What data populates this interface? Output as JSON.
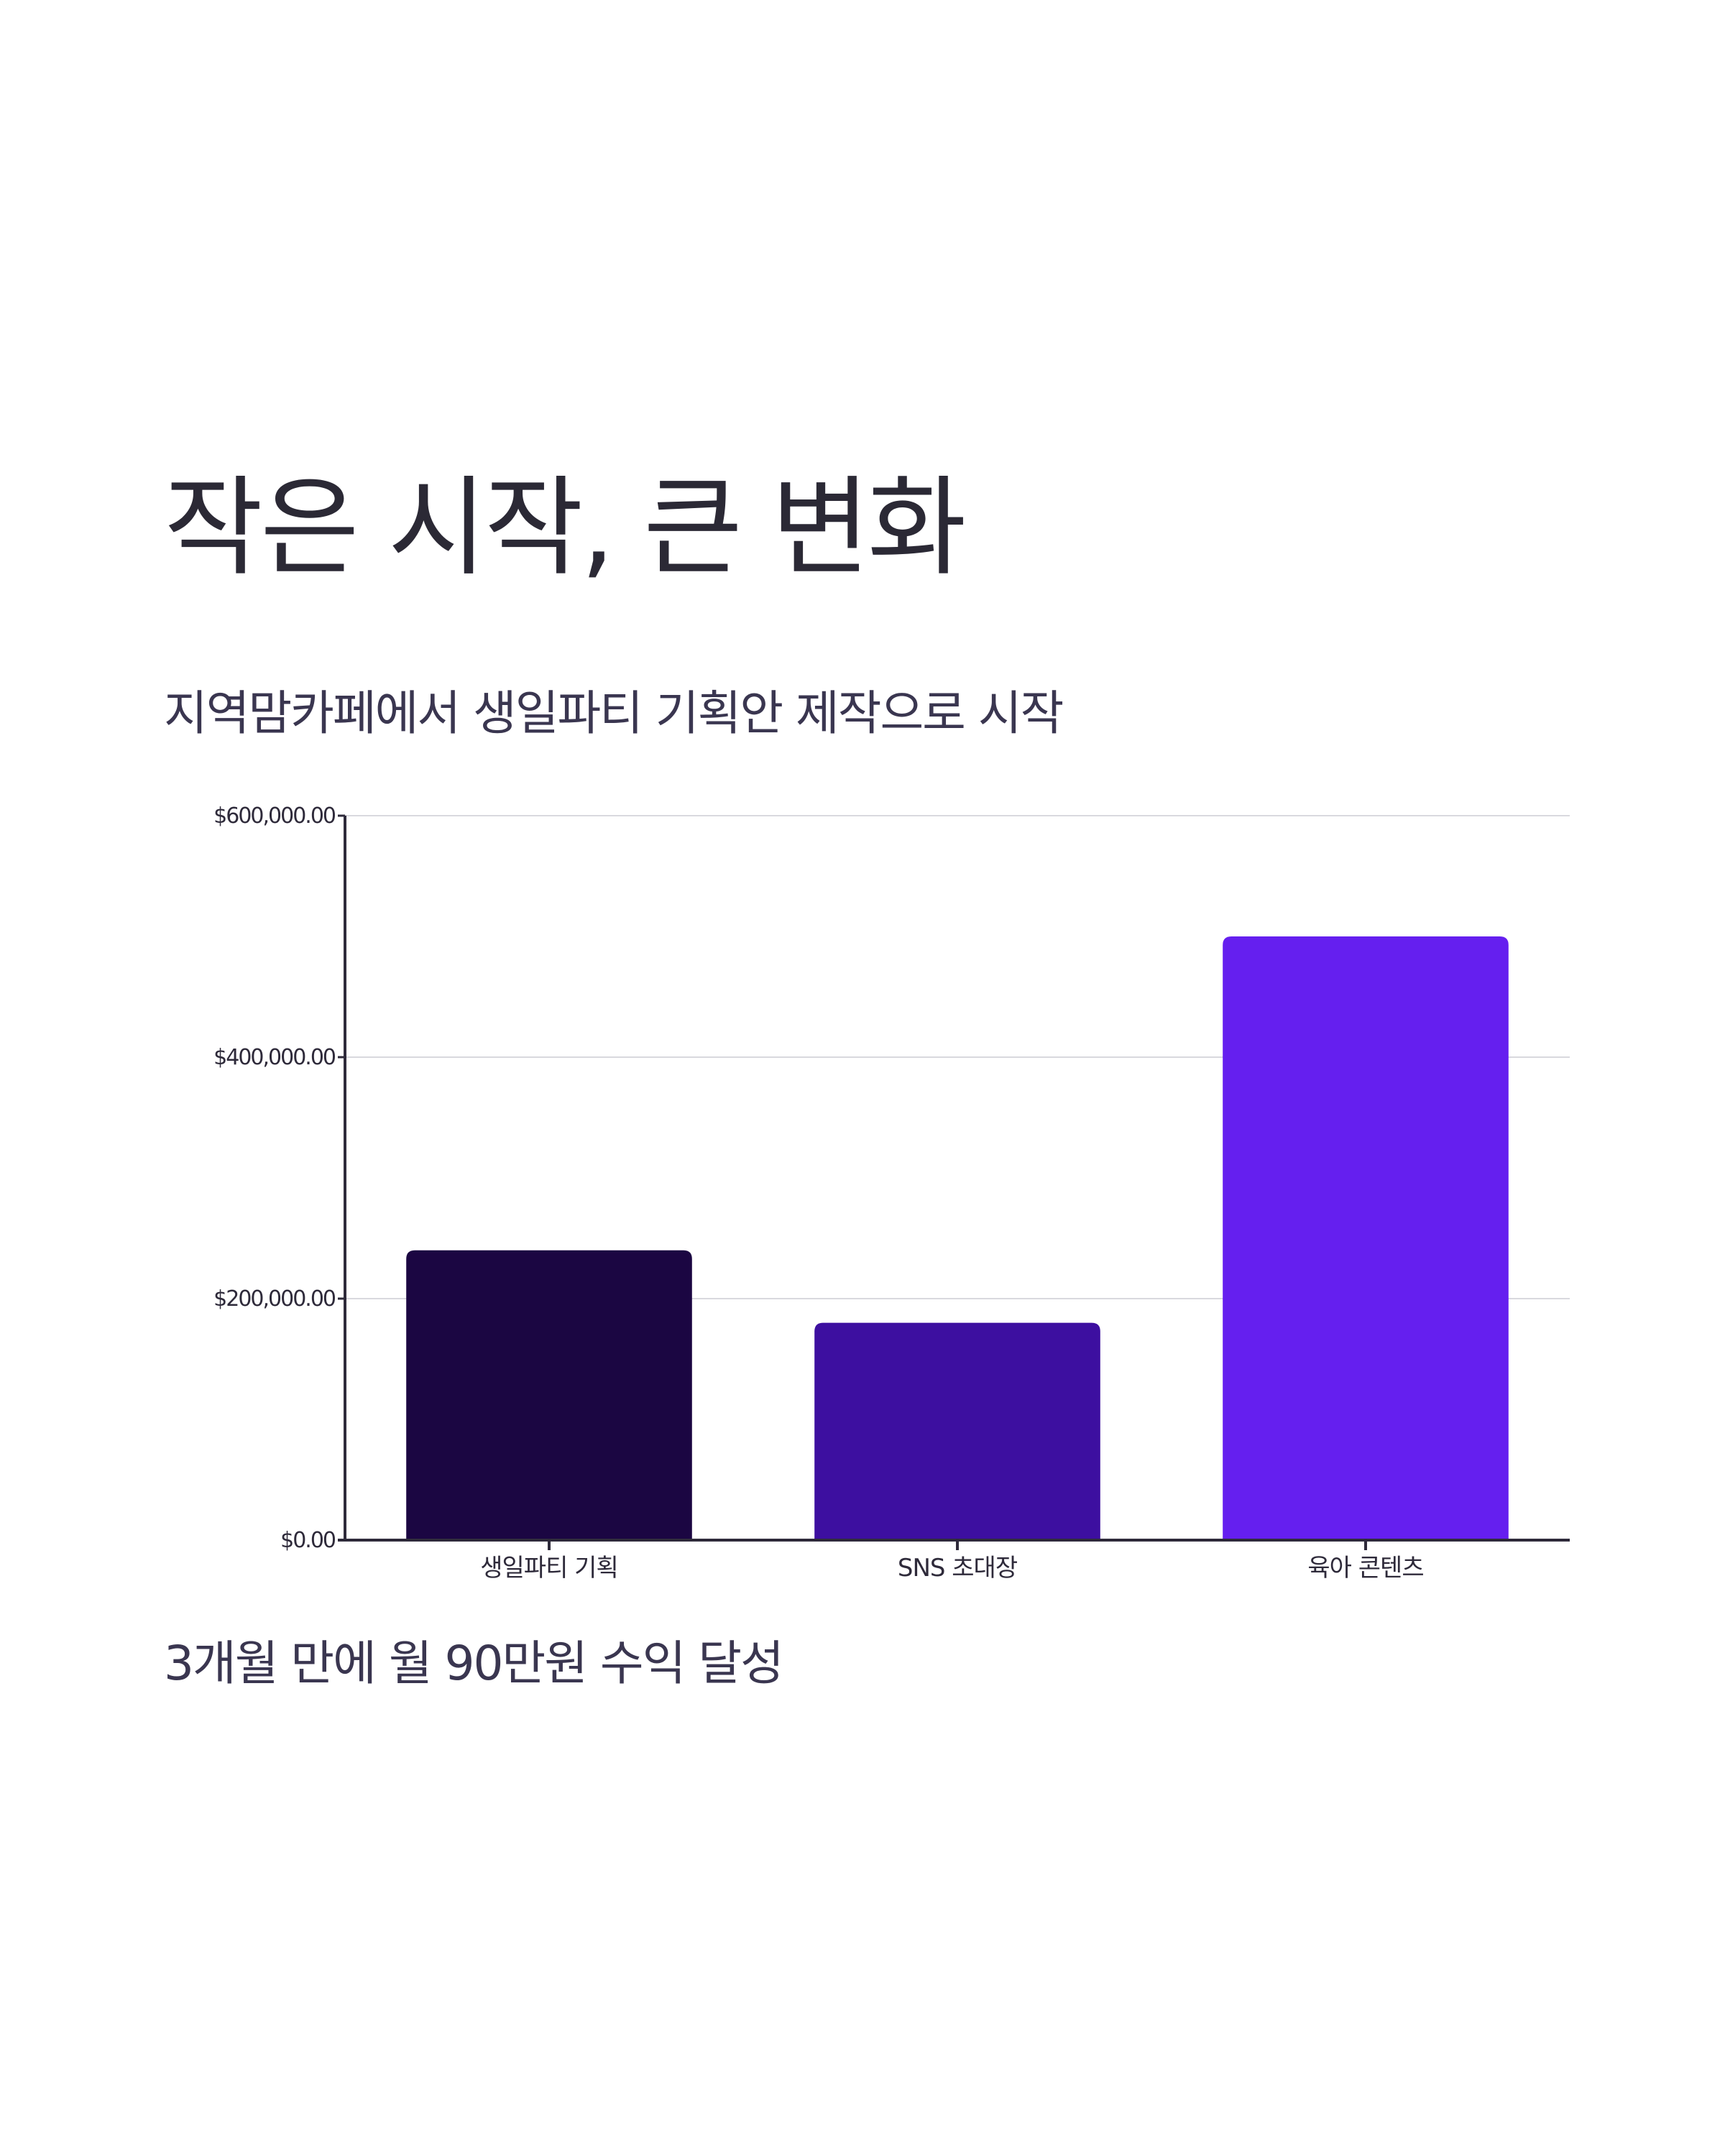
{
  "title": "작은 시작, 큰 변화",
  "subtitle": "지역맘카페에서 생일파티 기획안 제작으로 시작",
  "footnote": "3개월 만에 월 90만원 수익 달성",
  "chart_data": {
    "type": "bar",
    "categories": [
      "생일파티 기획",
      "SNS 초대장",
      "육아 콘텐츠"
    ],
    "values": [
      240000,
      180000,
      500000
    ],
    "colors": [
      "#1b0642",
      "#3d0fa0",
      "#651fef"
    ],
    "ylim": [
      0,
      600000
    ],
    "yticks": [
      0,
      200000,
      400000,
      600000
    ],
    "ytick_labels": [
      "$0.00",
      "$200,000.00",
      "$400,000.00",
      "$600,000.00"
    ],
    "grid": true,
    "xlabel": "",
    "ylabel": ""
  }
}
